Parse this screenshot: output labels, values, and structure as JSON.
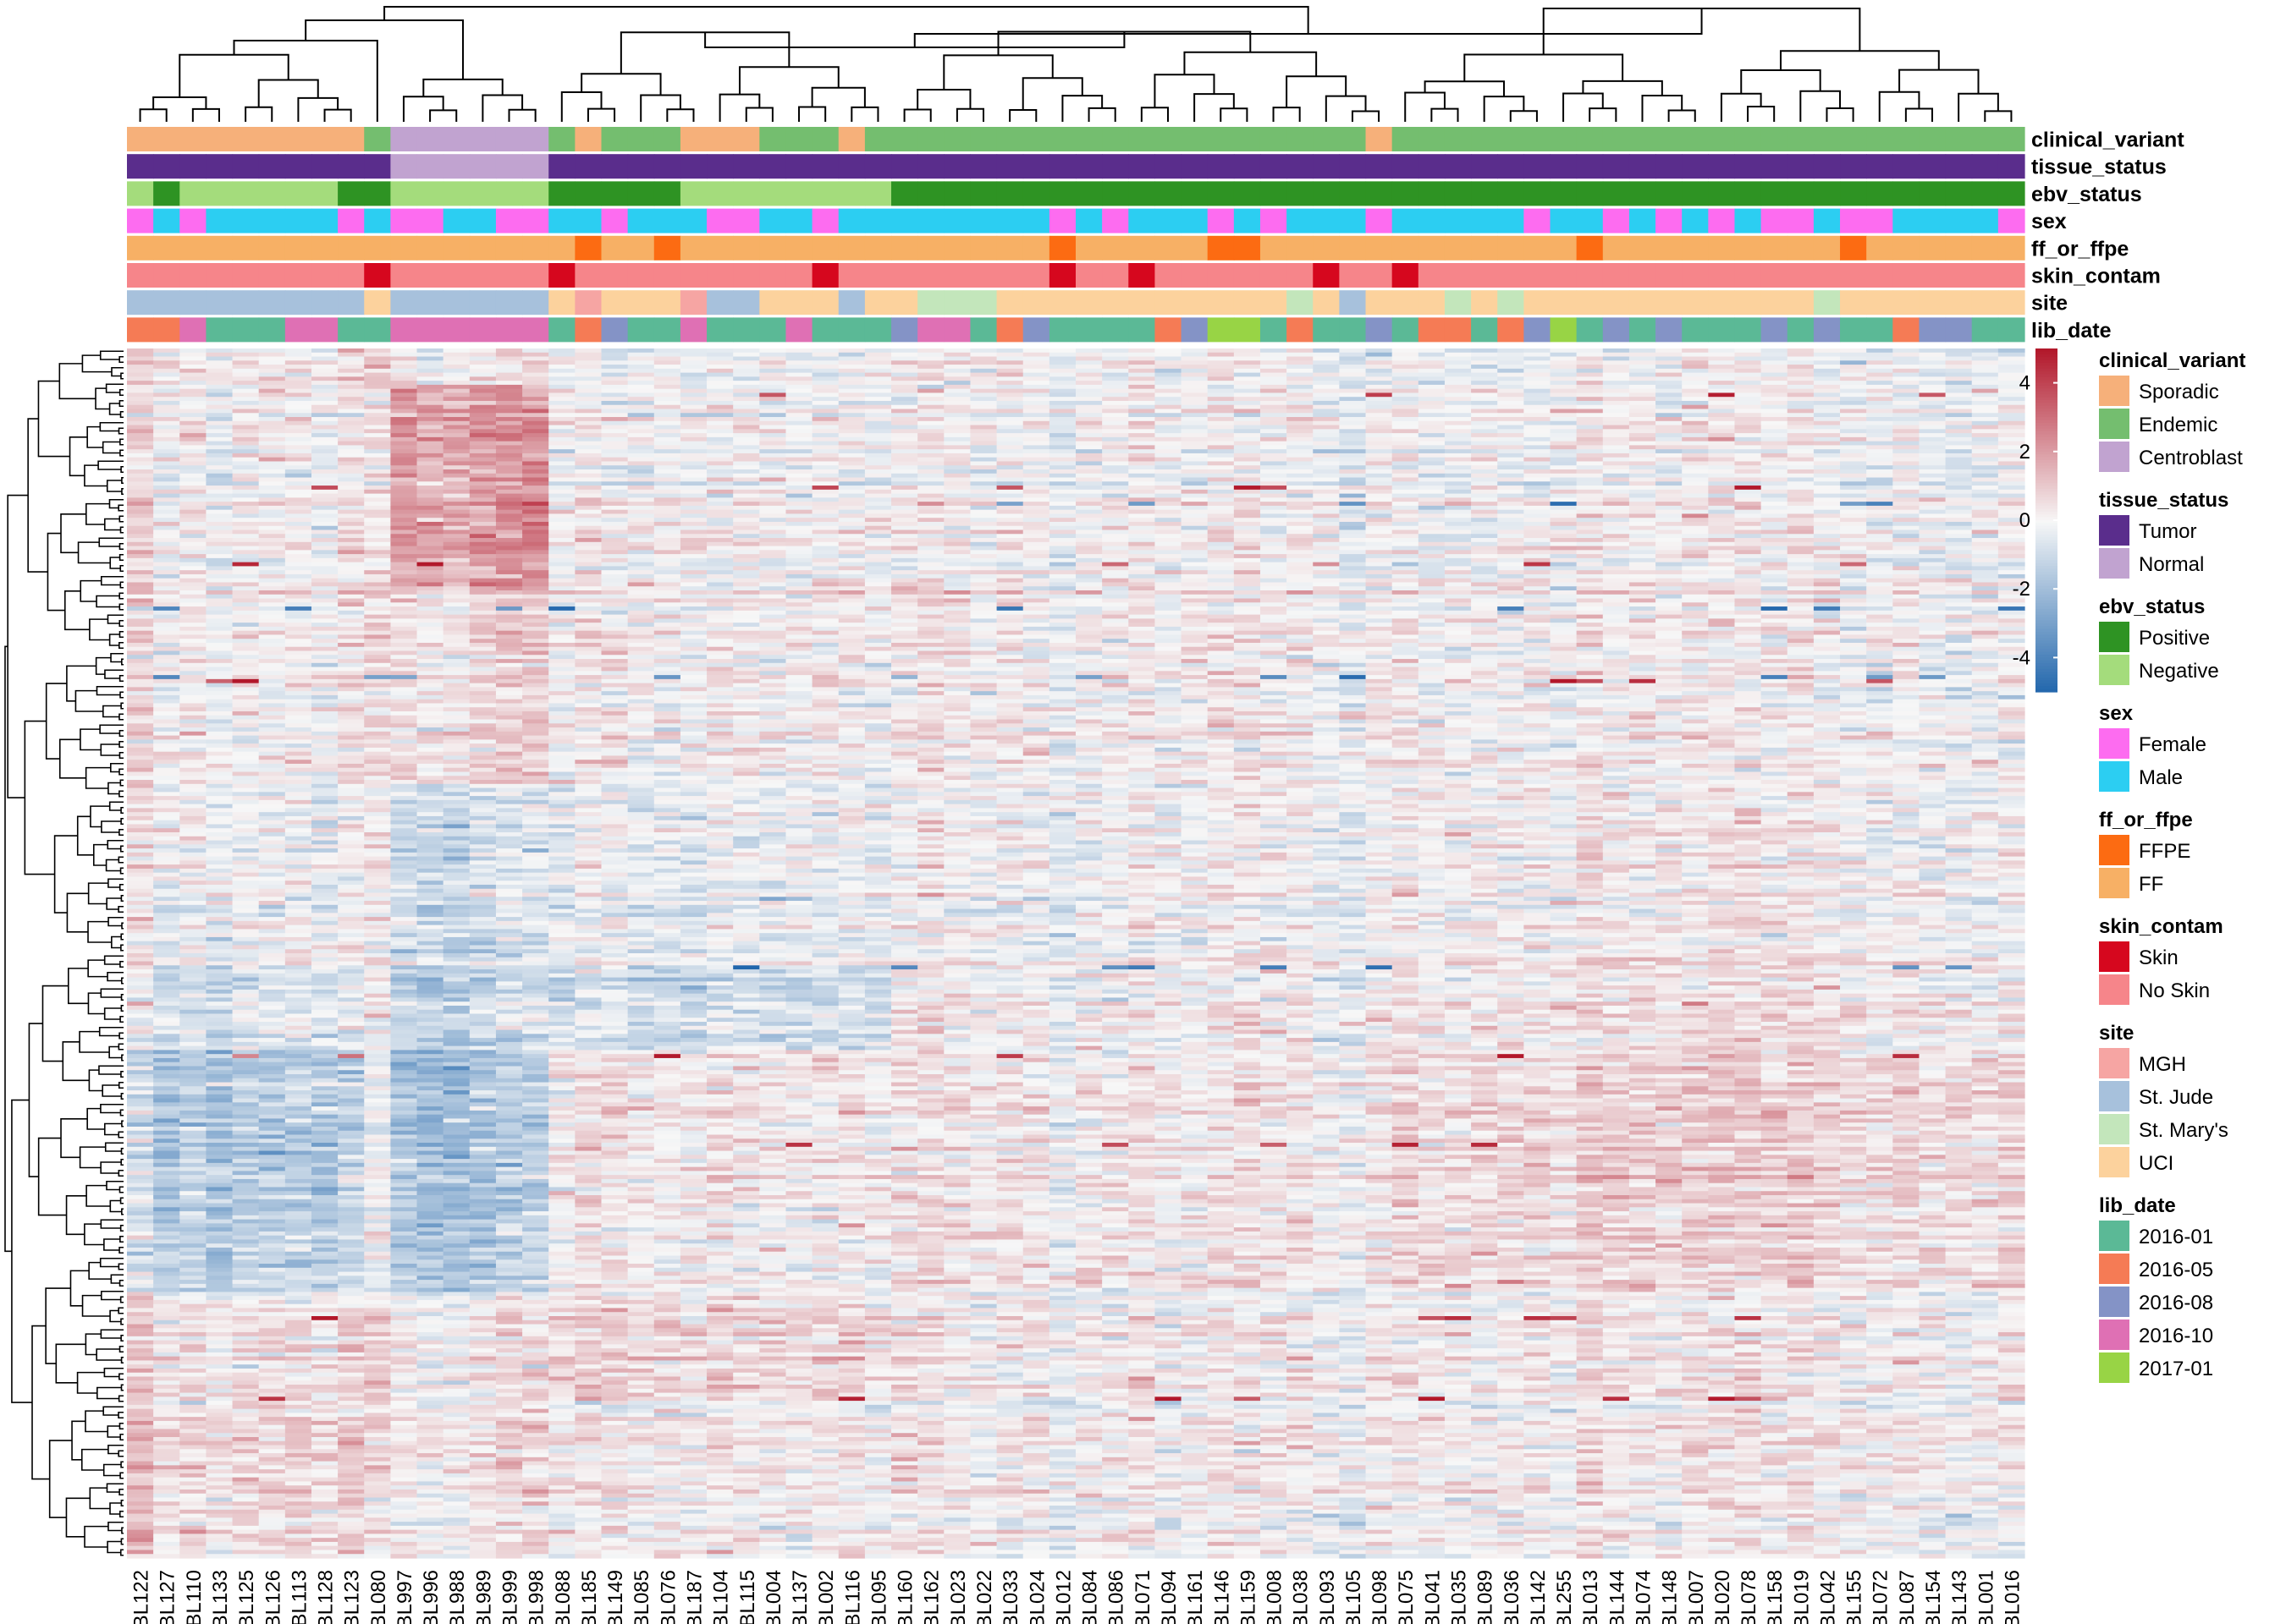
{
  "chart_data": {
    "type": "heatmap",
    "title": "",
    "columns": [
      "BL122",
      "BL127",
      "BL110",
      "BL133",
      "BL125",
      "BL126",
      "BL113",
      "BL128",
      "BL123",
      "BL080",
      "BL997",
      "BL996",
      "BL988",
      "BL989",
      "BL999",
      "BL998",
      "BL088",
      "BL185",
      "BL149",
      "BL085",
      "BL076",
      "BL187",
      "BL104",
      "BL115",
      "BL004",
      "BL137",
      "BL002",
      "BL116",
      "BL095",
      "BL160",
      "BL162",
      "BL023",
      "BL022",
      "BL033",
      "BL024",
      "BL012",
      "BL084",
      "BL086",
      "BL071",
      "BL094",
      "BL161",
      "BL146",
      "BL159",
      "BL008",
      "BL038",
      "BL093",
      "BL105",
      "BL098",
      "BL075",
      "BL041",
      "BL035",
      "BL089",
      "BL036",
      "BL142",
      "BL255",
      "BL013",
      "BL144",
      "BL074",
      "BL148",
      "BL007",
      "BL020",
      "BL078",
      "BL158",
      "BL019",
      "BL042",
      "BL155",
      "BL072",
      "BL087",
      "BL154",
      "BL143",
      "BL001",
      "BL016"
    ],
    "tracks": [
      {
        "name": "clinical_variant",
        "values": [
          "Sporadic",
          "Sporadic",
          "Sporadic",
          "Sporadic",
          "Sporadic",
          "Sporadic",
          "Sporadic",
          "Sporadic",
          "Sporadic",
          "Endemic",
          "Centroblast",
          "Centroblast",
          "Centroblast",
          "Centroblast",
          "Centroblast",
          "Centroblast",
          "Endemic",
          "Sporadic",
          "Endemic",
          "Endemic",
          "Endemic",
          "Sporadic",
          "Sporadic",
          "Sporadic",
          "Endemic",
          "Endemic",
          "Endemic",
          "Sporadic",
          "Endemic",
          "Endemic",
          "Endemic",
          "Endemic",
          "Endemic",
          "Endemic",
          "Endemic",
          "Endemic",
          "Endemic",
          "Endemic",
          "Endemic",
          "Endemic",
          "Endemic",
          "Endemic",
          "Endemic",
          "Endemic",
          "Endemic",
          "Endemic",
          "Endemic",
          "Sporadic",
          "Endemic",
          "Endemic",
          "Endemic",
          "Endemic",
          "Endemic",
          "Endemic",
          "Endemic",
          "Endemic",
          "Endemic",
          "Endemic",
          "Endemic",
          "Endemic",
          "Endemic",
          "Endemic",
          "Endemic",
          "Endemic",
          "Endemic",
          "Endemic",
          "Endemic",
          "Endemic",
          "Endemic",
          "Endemic",
          "Endemic",
          "Endemic"
        ]
      },
      {
        "name": "tissue_status",
        "values": [
          "Tumor",
          "Tumor",
          "Tumor",
          "Tumor",
          "Tumor",
          "Tumor",
          "Tumor",
          "Tumor",
          "Tumor",
          "Tumor",
          "Normal",
          "Normal",
          "Normal",
          "Normal",
          "Normal",
          "Normal",
          "Tumor",
          "Tumor",
          "Tumor",
          "Tumor",
          "Tumor",
          "Tumor",
          "Tumor",
          "Tumor",
          "Tumor",
          "Tumor",
          "Tumor",
          "Tumor",
          "Tumor",
          "Tumor",
          "Tumor",
          "Tumor",
          "Tumor",
          "Tumor",
          "Tumor",
          "Tumor",
          "Tumor",
          "Tumor",
          "Tumor",
          "Tumor",
          "Tumor",
          "Tumor",
          "Tumor",
          "Tumor",
          "Tumor",
          "Tumor",
          "Tumor",
          "Tumor",
          "Tumor",
          "Tumor",
          "Tumor",
          "Tumor",
          "Tumor",
          "Tumor",
          "Tumor",
          "Tumor",
          "Tumor",
          "Tumor",
          "Tumor",
          "Tumor",
          "Tumor",
          "Tumor",
          "Tumor",
          "Tumor",
          "Tumor",
          "Tumor",
          "Tumor",
          "Tumor",
          "Tumor",
          "Tumor",
          "Tumor",
          "Tumor"
        ]
      },
      {
        "name": "ebv_status",
        "values": [
          "Negative",
          "Positive",
          "Negative",
          "Negative",
          "Negative",
          "Negative",
          "Negative",
          "Negative",
          "Positive",
          "Positive",
          "Negative",
          "Negative",
          "Negative",
          "Negative",
          "Negative",
          "Negative",
          "Positive",
          "Positive",
          "Positive",
          "Positive",
          "Positive",
          "Negative",
          "Negative",
          "Negative",
          "Negative",
          "Negative",
          "Negative",
          "Negative",
          "Negative",
          "Positive",
          "Positive",
          "Positive",
          "Positive",
          "Positive",
          "Positive",
          "Positive",
          "Positive",
          "Positive",
          "Positive",
          "Positive",
          "Positive",
          "Positive",
          "Positive",
          "Positive",
          "Positive",
          "Positive",
          "Positive",
          "Positive",
          "Positive",
          "Positive",
          "Positive",
          "Positive",
          "Positive",
          "Positive",
          "Positive",
          "Positive",
          "Positive",
          "Positive",
          "Positive",
          "Positive",
          "Positive",
          "Positive",
          "Positive",
          "Positive",
          "Positive",
          "Positive",
          "Positive",
          "Positive",
          "Positive",
          "Positive",
          "Positive",
          "Positive"
        ]
      },
      {
        "name": "sex",
        "values": [
          "Female",
          "Male",
          "Female",
          "Male",
          "Male",
          "Male",
          "Male",
          "Male",
          "Female",
          "Male",
          "Female",
          "Female",
          "Male",
          "Male",
          "Female",
          "Female",
          "Male",
          "Male",
          "Female",
          "Male",
          "Male",
          "Male",
          "Female",
          "Female",
          "Male",
          "Male",
          "Female",
          "Male",
          "Male",
          "Male",
          "Male",
          "Male",
          "Male",
          "Male",
          "Male",
          "Female",
          "Male",
          "Female",
          "Male",
          "Male",
          "Male",
          "Female",
          "Male",
          "Female",
          "Male",
          "Male",
          "Male",
          "Female",
          "Male",
          "Male",
          "Male",
          "Male",
          "Male",
          "Female",
          "Male",
          "Male",
          "Female",
          "Male",
          "Female",
          "Male",
          "Female",
          "Male",
          "Female",
          "Female",
          "Male",
          "Female",
          "Female",
          "Male",
          "Male",
          "Male",
          "Male",
          "Female"
        ]
      },
      {
        "name": "ff_or_ffpe",
        "values": [
          "FF",
          "FF",
          "FF",
          "FF",
          "FF",
          "FF",
          "FF",
          "FF",
          "FF",
          "FF",
          "FF",
          "FF",
          "FF",
          "FF",
          "FF",
          "FF",
          "FF",
          "FFPE",
          "FF",
          "FF",
          "FFPE",
          "FF",
          "FF",
          "FF",
          "FF",
          "FF",
          "FF",
          "FF",
          "FF",
          "FF",
          "FF",
          "FF",
          "FF",
          "FF",
          "FF",
          "FFPE",
          "FF",
          "FF",
          "FF",
          "FF",
          "FF",
          "FFPE",
          "FFPE",
          "FF",
          "FF",
          "FF",
          "FF",
          "FF",
          "FF",
          "FF",
          "FF",
          "FF",
          "FF",
          "FF",
          "FF",
          "FFPE",
          "FF",
          "FF",
          "FF",
          "FF",
          "FF",
          "FF",
          "FF",
          "FF",
          "FF",
          "FFPE",
          "FF",
          "FF",
          "FF",
          "FF",
          "FF",
          "FF"
        ]
      },
      {
        "name": "skin_contam",
        "values": [
          "No Skin",
          "No Skin",
          "No Skin",
          "No Skin",
          "No Skin",
          "No Skin",
          "No Skin",
          "No Skin",
          "No Skin",
          "Skin",
          "No Skin",
          "No Skin",
          "No Skin",
          "No Skin",
          "No Skin",
          "No Skin",
          "Skin",
          "No Skin",
          "No Skin",
          "No Skin",
          "No Skin",
          "No Skin",
          "No Skin",
          "No Skin",
          "No Skin",
          "No Skin",
          "Skin",
          "No Skin",
          "No Skin",
          "No Skin",
          "No Skin",
          "No Skin",
          "No Skin",
          "No Skin",
          "No Skin",
          "Skin",
          "No Skin",
          "No Skin",
          "Skin",
          "No Skin",
          "No Skin",
          "No Skin",
          "No Skin",
          "No Skin",
          "No Skin",
          "Skin",
          "No Skin",
          "No Skin",
          "Skin",
          "No Skin",
          "No Skin",
          "No Skin",
          "No Skin",
          "No Skin",
          "No Skin",
          "No Skin",
          "No Skin",
          "No Skin",
          "No Skin",
          "No Skin",
          "No Skin",
          "No Skin",
          "No Skin",
          "No Skin",
          "No Skin",
          "No Skin",
          "No Skin",
          "No Skin",
          "No Skin",
          "No Skin",
          "No Skin",
          "No Skin"
        ]
      },
      {
        "name": "site",
        "values": [
          "St. Jude",
          "St. Jude",
          "St. Jude",
          "St. Jude",
          "St. Jude",
          "St. Jude",
          "St. Jude",
          "St. Jude",
          "St. Jude",
          "UCI",
          "St. Jude",
          "St. Jude",
          "St. Jude",
          "St. Jude",
          "St. Jude",
          "St. Jude",
          "UCI",
          "MGH",
          "UCI",
          "UCI",
          "UCI",
          "MGH",
          "St. Jude",
          "St. Jude",
          "UCI",
          "UCI",
          "UCI",
          "St. Jude",
          "UCI",
          "UCI",
          "St. Mary's",
          "St. Mary's",
          "St. Mary's",
          "UCI",
          "UCI",
          "UCI",
          "UCI",
          "UCI",
          "UCI",
          "UCI",
          "UCI",
          "UCI",
          "UCI",
          "UCI",
          "St. Mary's",
          "UCI",
          "St. Jude",
          "UCI",
          "UCI",
          "UCI",
          "St. Mary's",
          "UCI",
          "St. Mary's",
          "UCI",
          "UCI",
          "UCI",
          "UCI",
          "UCI",
          "UCI",
          "UCI",
          "UCI",
          "UCI",
          "UCI",
          "UCI",
          "St. Mary's",
          "UCI",
          "UCI",
          "UCI",
          "UCI",
          "UCI",
          "UCI",
          "UCI"
        ]
      },
      {
        "name": "lib_date",
        "values": [
          "2016-05",
          "2016-05",
          "2016-10",
          "2016-01",
          "2016-01",
          "2016-01",
          "2016-10",
          "2016-10",
          "2016-01",
          "2016-01",
          "2016-10",
          "2016-10",
          "2016-10",
          "2016-10",
          "2016-10",
          "2016-10",
          "2016-01",
          "2016-05",
          "2016-08",
          "2016-01",
          "2016-01",
          "2016-10",
          "2016-01",
          "2016-01",
          "2016-01",
          "2016-10",
          "2016-01",
          "2016-01",
          "2016-01",
          "2016-08",
          "2016-10",
          "2016-10",
          "2016-01",
          "2016-05",
          "2016-08",
          "2016-01",
          "2016-01",
          "2016-01",
          "2016-01",
          "2016-05",
          "2016-08",
          "2017-01",
          "2017-01",
          "2016-01",
          "2016-05",
          "2016-01",
          "2016-01",
          "2016-08",
          "2016-01",
          "2016-05",
          "2016-05",
          "2016-01",
          "2016-05",
          "2016-08",
          "2017-01",
          "2016-01",
          "2016-08",
          "2016-01",
          "2016-08",
          "2016-01",
          "2016-01",
          "2016-01",
          "2016-08",
          "2016-01",
          "2016-08",
          "2016-01",
          "2016-01",
          "2016-05",
          "2016-08",
          "2016-08",
          "2016-01",
          "2016-01"
        ]
      }
    ],
    "legends": [
      {
        "title": "clinical_variant",
        "entries": [
          {
            "label": "Sporadic",
            "color": "#f6b07a"
          },
          {
            "label": "Endemic",
            "color": "#74be6f"
          },
          {
            "label": "Centroblast",
            "color": "#c1a3d0"
          }
        ]
      },
      {
        "title": "tissue_status",
        "entries": [
          {
            "label": "Tumor",
            "color": "#5a2d8c"
          },
          {
            "label": "Normal",
            "color": "#c1a3d0"
          }
        ]
      },
      {
        "title": "ebv_status",
        "entries": [
          {
            "label": "Positive",
            "color": "#2e9323"
          },
          {
            "label": "Negative",
            "color": "#a4dc7c"
          }
        ]
      },
      {
        "title": "sex",
        "entries": [
          {
            "label": "Female",
            "color": "#fd6cf0"
          },
          {
            "label": "Male",
            "color": "#2ccef2"
          }
        ]
      },
      {
        "title": "ff_or_ffpe",
        "entries": [
          {
            "label": "FFPE",
            "color": "#fc6b12"
          },
          {
            "label": "FF",
            "color": "#f7b065"
          }
        ]
      },
      {
        "title": "skin_contam",
        "entries": [
          {
            "label": "Skin",
            "color": "#d6071e"
          },
          {
            "label": "No Skin",
            "color": "#f6858a"
          }
        ]
      },
      {
        "title": "site",
        "entries": [
          {
            "label": "MGH",
            "color": "#f6a5a3"
          },
          {
            "label": "St. Jude",
            "color": "#a7c1dc"
          },
          {
            "label": "St. Mary's",
            "color": "#c3e6bb"
          },
          {
            "label": "UCI",
            "color": "#fcd29d"
          }
        ]
      },
      {
        "title": "lib_date",
        "entries": [
          {
            "label": "2016-01",
            "color": "#5bb996"
          },
          {
            "label": "2016-05",
            "color": "#f57b55"
          },
          {
            "label": "2016-08",
            "color": "#8493c6"
          },
          {
            "label": "2016-10",
            "color": "#df70b4"
          },
          {
            "label": "2017-01",
            "color": "#98d445"
          }
        ]
      }
    ],
    "color_scale": {
      "ticks": [
        "4",
        "2",
        "0",
        "-2",
        "-4"
      ],
      "range": [
        -5,
        5
      ],
      "stops": [
        "#2166ac",
        "#f7f7f7",
        "#b2182b"
      ]
    },
    "row_blocks": [
      {
        "rows": [
          0,
          0.03
        ],
        "cluster_means": [
          0.5,
          0.9,
          0.3,
          0.1,
          0.2,
          0
        ]
      },
      {
        "rows": [
          0.03,
          0.2
        ],
        "cluster_means": [
          0.1,
          0.1,
          2.0,
          0.05,
          0.05,
          0.05
        ]
      },
      {
        "rows": [
          0.2,
          0.36
        ],
        "cluster_means": [
          0.05,
          0.1,
          0.6,
          0.1,
          0.1,
          0.05
        ]
      },
      {
        "rows": [
          0.36,
          0.51
        ],
        "cluster_means": [
          -0.2,
          -0.2,
          -0.9,
          -0.3,
          -0.1,
          0.1
        ]
      },
      {
        "rows": [
          0.51,
          0.58
        ],
        "cluster_means": [
          -0.6,
          -0.3,
          -1.1,
          -0.9,
          0.1,
          0.4
        ]
      },
      {
        "rows": [
          0.58,
          0.72
        ],
        "cluster_means": [
          -1.4,
          -0.4,
          -1.7,
          0.4,
          0.3,
          0.8
        ]
      },
      {
        "rows": [
          0.72,
          0.78
        ],
        "cluster_means": [
          -1.2,
          -0.4,
          -1.4,
          0.2,
          0.4,
          0.8
        ]
      },
      {
        "rows": [
          0.78,
          0.87
        ],
        "cluster_means": [
          0.4,
          0.1,
          0.1,
          0.6,
          0.1,
          0.2
        ]
      },
      {
        "rows": [
          0.87,
          1.0
        ],
        "cluster_means": [
          0.6,
          0.2,
          0.3,
          0.1,
          0,
          0.1
        ]
      }
    ],
    "column_clusters": [
      [
        0,
        9
      ],
      [
        9,
        10
      ],
      [
        10,
        16
      ],
      [
        16,
        29
      ],
      [
        29,
        48
      ],
      [
        48,
        72
      ]
    ]
  }
}
